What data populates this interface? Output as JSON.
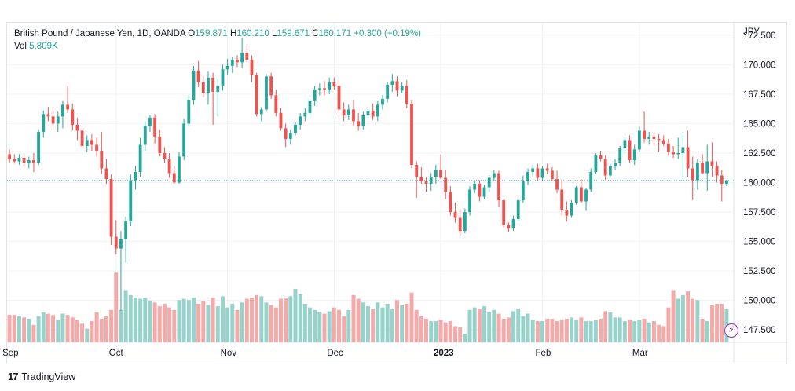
{
  "legend": {
    "symbol": "British Pound / Japanese Yen, 1D, OANDA",
    "o_label": "O",
    "o_value": "159.871",
    "h_label": "H",
    "h_value": "160.210",
    "l_label": "L",
    "l_value": "159.671",
    "c_label": "C",
    "c_value": "160.171",
    "change": "+0.300 (+0.19%)",
    "vol_label": "Vol",
    "vol_value": "5.809K"
  },
  "brand": {
    "logo": "17",
    "name": "TradingView"
  },
  "colors": {
    "up": "#26a69a",
    "down": "#ef5350",
    "up_vol": "#97d2cb",
    "down_vol": "#f3aaa8",
    "grid": "#f0f3fa",
    "last": "#26a69a",
    "accent": "#9c27b0"
  },
  "chart_data": {
    "type": "candlestick",
    "currency_label": "JPY",
    "y_ticks": [
      "172.500",
      "170.000",
      "167.500",
      "165.000",
      "162.500",
      "160.000",
      "157.500",
      "155.000",
      "152.500",
      "150.000",
      "147.500"
    ],
    "ylim": [
      146.45,
      173.55
    ],
    "x_ticks": [
      {
        "label": "Sep",
        "index": 0,
        "bold": false
      },
      {
        "label": "Oct",
        "index": 22,
        "bold": false
      },
      {
        "label": "Nov",
        "index": 45,
        "bold": false
      },
      {
        "label": "Dec",
        "index": 67,
        "bold": false
      },
      {
        "label": "2023",
        "index": 89,
        "bold": true
      },
      {
        "label": "Feb",
        "index": 110,
        "bold": false
      },
      {
        "label": "Mar",
        "index": 130,
        "bold": false
      }
    ],
    "last_price": 160.171,
    "candles": [
      [
        162.4,
        162.8,
        161.7,
        162.0,
        1.1
      ],
      [
        162.0,
        162.4,
        161.6,
        161.8,
        1.1
      ],
      [
        161.8,
        162.4,
        161.5,
        162.1,
        1.05
      ],
      [
        162.1,
        162.3,
        161.4,
        161.7,
        1.0
      ],
      [
        161.7,
        162.2,
        161.2,
        161.9,
        0.95
      ],
      [
        161.9,
        162.5,
        160.9,
        161.7,
        0.7
      ],
      [
        161.7,
        164.5,
        161.5,
        164.3,
        1.05
      ],
      [
        164.3,
        166.1,
        163.8,
        165.8,
        1.2
      ],
      [
        165.8,
        166.4,
        165.2,
        165.6,
        1.15
      ],
      [
        165.6,
        166.2,
        164.7,
        165.0,
        1.1
      ],
      [
        165.0,
        166.0,
        164.3,
        165.6,
        0.9
      ],
      [
        165.6,
        166.9,
        164.6,
        166.6,
        1.15
      ],
      [
        166.6,
        168.2,
        165.9,
        166.2,
        1.1
      ],
      [
        166.2,
        166.7,
        164.4,
        164.9,
        1.0
      ],
      [
        164.9,
        165.5,
        163.6,
        164.4,
        0.9
      ],
      [
        164.4,
        164.8,
        162.9,
        163.1,
        0.75
      ],
      [
        163.1,
        164.0,
        162.6,
        163.6,
        0.55
      ],
      [
        163.6,
        164.1,
        162.7,
        163.2,
        0.85
      ],
      [
        163.2,
        163.8,
        162.2,
        162.7,
        1.2
      ],
      [
        162.7,
        164.3,
        160.7,
        161.2,
        0.95
      ],
      [
        161.2,
        162.0,
        159.9,
        160.3,
        1.05
      ],
      [
        160.3,
        160.7,
        154.7,
        155.4,
        1.3
      ],
      [
        155.4,
        156.8,
        153.9,
        154.4,
        2.8
      ],
      [
        154.4,
        155.9,
        149.1,
        155.2,
        1.3
      ],
      [
        155.2,
        157.1,
        153.2,
        156.7,
        2.1
      ],
      [
        156.7,
        160.7,
        156.3,
        160.2,
        1.9
      ],
      [
        160.2,
        161.4,
        159.4,
        160.9,
        1.8
      ],
      [
        160.9,
        163.8,
        160.5,
        163.2,
        1.75
      ],
      [
        163.2,
        165.2,
        162.7,
        164.8,
        1.8
      ],
      [
        164.8,
        165.7,
        164.3,
        165.5,
        1.65
      ],
      [
        165.5,
        165.8,
        163.3,
        163.9,
        1.6
      ],
      [
        163.9,
        164.5,
        162.2,
        162.5,
        1.45
      ],
      [
        162.5,
        163.0,
        161.7,
        162.0,
        1.55
      ],
      [
        162.0,
        162.5,
        160.4,
        160.8,
        1.4
      ],
      [
        160.8,
        161.4,
        159.9,
        160.0,
        1.3
      ],
      [
        160.0,
        162.6,
        159.9,
        162.2,
        1.7
      ],
      [
        162.2,
        165.4,
        161.9,
        165.0,
        1.75
      ],
      [
        165.0,
        167.4,
        164.8,
        167.0,
        1.7
      ],
      [
        167.0,
        169.9,
        166.6,
        169.5,
        1.8
      ],
      [
        169.5,
        170.3,
        168.1,
        168.5,
        1.55
      ],
      [
        168.5,
        169.0,
        167.2,
        167.6,
        1.65
      ],
      [
        167.6,
        169.4,
        166.6,
        168.9,
        1.5
      ],
      [
        168.9,
        169.3,
        164.9,
        167.7,
        1.8
      ],
      [
        167.7,
        168.8,
        165.6,
        168.2,
        1.45
      ],
      [
        168.2,
        170.0,
        167.8,
        169.6,
        1.85
      ],
      [
        169.6,
        170.5,
        169.1,
        169.9,
        1.4
      ],
      [
        169.9,
        170.7,
        169.3,
        170.4,
        1.55
      ],
      [
        170.4,
        170.8,
        169.8,
        170.2,
        1.3
      ],
      [
        170.2,
        172.3,
        169.7,
        171.0,
        1.6
      ],
      [
        171.0,
        171.6,
        170.2,
        170.4,
        1.75
      ],
      [
        170.4,
        170.8,
        168.5,
        169.1,
        1.8
      ],
      [
        169.1,
        169.3,
        165.6,
        165.8,
        1.9
      ],
      [
        165.8,
        166.4,
        165.2,
        166.2,
        1.85
      ],
      [
        166.2,
        169.2,
        166.0,
        169.0,
        1.6
      ],
      [
        169.0,
        169.3,
        167.1,
        167.4,
        1.5
      ],
      [
        167.4,
        167.9,
        165.6,
        165.9,
        1.4
      ],
      [
        165.9,
        166.3,
        164.4,
        164.6,
        1.75
      ],
      [
        164.6,
        165.0,
        163.0,
        163.7,
        1.8
      ],
      [
        163.7,
        164.5,
        163.2,
        164.2,
        1.85
      ],
      [
        164.2,
        165.1,
        164.0,
        164.9,
        2.15
      ],
      [
        164.9,
        165.9,
        164.5,
        165.6,
        1.95
      ],
      [
        165.6,
        166.3,
        165.2,
        165.9,
        1.55
      ],
      [
        165.9,
        167.2,
        165.5,
        166.9,
        1.4
      ],
      [
        166.9,
        168.2,
        166.5,
        167.9,
        1.3
      ],
      [
        167.9,
        168.4,
        167.4,
        168.0,
        1.2
      ],
      [
        168.0,
        168.6,
        167.4,
        167.9,
        1.15
      ],
      [
        167.9,
        168.9,
        167.5,
        168.5,
        1.25
      ],
      [
        168.5,
        168.9,
        167.9,
        168.2,
        1.4
      ],
      [
        168.2,
        168.7,
        165.8,
        166.2,
        1.3
      ],
      [
        166.2,
        166.8,
        165.2,
        165.7,
        1.05
      ],
      [
        165.7,
        166.6,
        165.3,
        166.2,
        1.3
      ],
      [
        166.2,
        167.0,
        164.8,
        165.2,
        1.9
      ],
      [
        165.2,
        165.9,
        164.4,
        164.8,
        1.75
      ],
      [
        164.8,
        166.0,
        164.5,
        165.7,
        1.6
      ],
      [
        165.7,
        166.3,
        165.5,
        166.1,
        1.45
      ],
      [
        166.1,
        166.7,
        165.3,
        165.6,
        1.35
      ],
      [
        165.6,
        166.9,
        165.2,
        166.6,
        1.6
      ],
      [
        166.6,
        167.4,
        166.2,
        167.1,
        1.4
      ],
      [
        167.1,
        168.5,
        166.8,
        168.3,
        1.55
      ],
      [
        168.3,
        169.2,
        167.7,
        168.6,
        1.35
      ],
      [
        168.6,
        169.0,
        167.3,
        167.8,
        1.7
      ],
      [
        167.8,
        168.5,
        167.6,
        168.2,
        1.5
      ],
      [
        168.2,
        168.7,
        166.3,
        166.7,
        1.55
      ],
      [
        166.7,
        167.0,
        161.2,
        161.5,
        2.0
      ],
      [
        161.5,
        161.8,
        158.7,
        160.5,
        1.3
      ],
      [
        160.5,
        161.3,
        159.9,
        160.1,
        1.05
      ],
      [
        160.1,
        160.5,
        159.2,
        159.9,
        0.95
      ],
      [
        159.9,
        160.8,
        159.3,
        160.5,
        0.85
      ],
      [
        160.5,
        161.5,
        159.9,
        161.1,
        0.85
      ],
      [
        161.1,
        162.4,
        160.3,
        160.4,
        0.9
      ],
      [
        160.4,
        161.1,
        158.6,
        159.2,
        0.8
      ],
      [
        159.2,
        159.7,
        157.2,
        157.5,
        0.85
      ],
      [
        157.5,
        158.3,
        156.6,
        157.0,
        0.65
      ],
      [
        157.0,
        157.8,
        155.5,
        155.9,
        0.6
      ],
      [
        155.9,
        157.8,
        155.7,
        157.5,
        0.35
      ],
      [
        157.5,
        159.7,
        157.2,
        159.4,
        1.3
      ],
      [
        159.4,
        160.2,
        159.1,
        159.9,
        1.4
      ],
      [
        159.9,
        160.2,
        158.4,
        158.8,
        1.35
      ],
      [
        158.8,
        159.8,
        158.6,
        159.6,
        1.45
      ],
      [
        159.6,
        160.6,
        159.2,
        160.4,
        1.2
      ],
      [
        160.4,
        161.1,
        160.1,
        160.8,
        1.3
      ],
      [
        160.8,
        161.0,
        157.9,
        158.5,
        1.15
      ],
      [
        158.5,
        158.6,
        156.2,
        156.4,
        0.95
      ],
      [
        156.4,
        156.6,
        155.8,
        156.1,
        1.0
      ],
      [
        156.1,
        157.2,
        155.9,
        156.9,
        1.25
      ],
      [
        156.9,
        158.6,
        156.7,
        158.5,
        1.35
      ],
      [
        158.5,
        160.6,
        158.3,
        160.1,
        1.05
      ],
      [
        160.1,
        161.2,
        159.8,
        160.9,
        1.15
      ],
      [
        160.9,
        161.5,
        160.5,
        161.2,
        0.9
      ],
      [
        161.2,
        161.6,
        160.2,
        160.4,
        0.85
      ],
      [
        160.4,
        161.4,
        160.1,
        161.2,
        0.85
      ],
      [
        161.2,
        161.6,
        160.7,
        161.0,
        0.95
      ],
      [
        161.0,
        161.3,
        160.1,
        160.3,
        0.95
      ],
      [
        160.3,
        161.0,
        159.1,
        159.4,
        0.85
      ],
      [
        159.4,
        160.1,
        157.2,
        157.7,
        0.9
      ],
      [
        157.7,
        158.4,
        156.7,
        157.2,
        0.95
      ],
      [
        157.2,
        158.5,
        157.0,
        158.3,
        1.0
      ],
      [
        158.3,
        159.7,
        158.1,
        159.6,
        0.9
      ],
      [
        159.6,
        160.3,
        158.3,
        158.4,
        1.0
      ],
      [
        158.4,
        159.5,
        157.6,
        159.4,
        0.85
      ],
      [
        159.4,
        161.2,
        159.2,
        160.9,
        0.85
      ],
      [
        160.9,
        162.5,
        160.7,
        162.3,
        0.9
      ],
      [
        162.3,
        162.7,
        161.8,
        162.0,
        0.95
      ],
      [
        162.0,
        162.3,
        160.2,
        160.6,
        1.25
      ],
      [
        160.6,
        161.6,
        160.4,
        161.4,
        1.2
      ],
      [
        161.4,
        162.0,
        161.1,
        161.7,
        1.0
      ],
      [
        161.7,
        163.1,
        161.4,
        162.9,
        1.0
      ],
      [
        162.9,
        163.8,
        162.5,
        163.6,
        0.85
      ],
      [
        163.6,
        164.0,
        161.7,
        161.9,
        0.9
      ],
      [
        161.9,
        163.2,
        161.5,
        162.8,
        0.85
      ],
      [
        162.8,
        164.8,
        162.6,
        164.4,
        0.9
      ],
      [
        164.4,
        166.0,
        163.4,
        163.7,
        0.95
      ],
      [
        163.7,
        164.3,
        163.2,
        163.9,
        0.8
      ],
      [
        163.9,
        164.3,
        163.1,
        163.7,
        0.85
      ],
      [
        163.7,
        164.1,
        162.6,
        163.6,
        0.7
      ],
      [
        163.6,
        164.0,
        163.1,
        163.3,
        0.65
      ],
      [
        163.3,
        163.7,
        162.3,
        162.6,
        1.4
      ],
      [
        162.6,
        163.1,
        162.1,
        162.4,
        2.1
      ],
      [
        162.4,
        163.8,
        162.0,
        162.5,
        1.75
      ],
      [
        162.5,
        164.2,
        160.3,
        163.0,
        1.9
      ],
      [
        163.0,
        164.4,
        160.5,
        161.2,
        2.05
      ],
      [
        161.2,
        162.2,
        158.5,
        160.2,
        1.75
      ],
      [
        160.2,
        162.0,
        159.4,
        161.7,
        1.7
      ],
      [
        161.7,
        162.4,
        160.7,
        160.8,
        0.95
      ],
      [
        160.8,
        163.2,
        159.3,
        161.8,
        0.85
      ],
      [
        161.8,
        163.4,
        160.5,
        161.4,
        1.5
      ],
      [
        161.4,
        161.8,
        160.0,
        160.6,
        1.55
      ],
      [
        160.6,
        161.1,
        158.4,
        159.9,
        1.55
      ],
      [
        159.9,
        160.2,
        159.7,
        160.2,
        1.35
      ]
    ]
  }
}
